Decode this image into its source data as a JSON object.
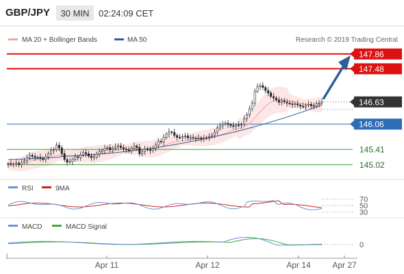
{
  "header": {
    "symbol": "GBP/JPY",
    "timeframe": "30 MIN",
    "time": "02:24:09 CET"
  },
  "legend_main": {
    "items": [
      {
        "label": "MA 20 + Bollinger Bands",
        "color": "#f4a3a3"
      },
      {
        "label": "MA 50",
        "color": "#2d5f9a"
      }
    ],
    "source": "Research © 2019 Trading Central"
  },
  "legend_rsi": {
    "items": [
      {
        "label": "RSI",
        "color": "#6b8fd6"
      },
      {
        "label": "9MA",
        "color": "#cc2222"
      }
    ]
  },
  "legend_macd": {
    "items": [
      {
        "label": "MACD",
        "color": "#6b8fd6"
      },
      {
        "label": "MACD Signal",
        "color": "#3aaa35"
      }
    ]
  },
  "colors": {
    "resistance": "#dd1111",
    "pivot": "#333333",
    "support_blue": "#2d6db5",
    "support_green": "#3a9a3a",
    "arrow": "#2d5f9a",
    "candle": "#222222",
    "band_fill": "#fde0e0",
    "band_line": "#f4a3a3"
  },
  "chart_data": [
    {
      "type": "candlestick",
      "title": "GBP/JPY",
      "x_ticks": [
        "Apr 11",
        "Apr 12",
        "Apr 14",
        "Apr 27"
      ],
      "ylim": [
        144.85,
        148.05
      ],
      "levels": [
        {
          "value": 147.86,
          "label": "147.86",
          "kind": "resistance",
          "box": true
        },
        {
          "value": 147.48,
          "label": "147.48",
          "kind": "resistance",
          "box": true
        },
        {
          "value": 146.63,
          "label": "146.63",
          "kind": "pivot",
          "box": true
        },
        {
          "value": 146.06,
          "label": "146.06",
          "kind": "support_blue",
          "box": true
        },
        {
          "value": 145.41,
          "label": "145.41",
          "kind": "support_green",
          "box": false
        },
        {
          "value": 145.02,
          "label": "145.02",
          "kind": "support_green",
          "box": false
        }
      ],
      "close": [
        145.05,
        145.03,
        145.04,
        145.06,
        145.02,
        145.08,
        145.12,
        145.2,
        145.26,
        145.23,
        145.2,
        145.21,
        145.19,
        145.15,
        145.22,
        145.3,
        145.38,
        145.4,
        145.52,
        145.45,
        145.3,
        145.15,
        145.08,
        145.1,
        145.16,
        145.22,
        145.2,
        145.27,
        145.33,
        145.3,
        145.24,
        145.2,
        145.22,
        145.29,
        145.35,
        145.38,
        145.44,
        145.46,
        145.4,
        145.44,
        145.48,
        145.5,
        145.46,
        145.42,
        145.4,
        145.38,
        145.44,
        145.5,
        145.46,
        145.3,
        145.36,
        145.42,
        145.4,
        145.38,
        145.44,
        145.52,
        145.62,
        145.6,
        145.72,
        145.8,
        145.86,
        145.85,
        145.77,
        145.72,
        145.71,
        145.74,
        145.76,
        145.71,
        145.72,
        145.7,
        145.69,
        145.71,
        145.68,
        145.7,
        145.72,
        145.74,
        145.78,
        145.85,
        145.96,
        146.02,
        146.06,
        146.08,
        146.05,
        146.02,
        146.0,
        146.04,
        146.03,
        146.05,
        146.2,
        146.3,
        146.45,
        146.6,
        146.9,
        147.02,
        147.05,
        147.0,
        146.92,
        146.86,
        146.77,
        146.73,
        146.68,
        146.62,
        146.66,
        146.63,
        146.6,
        146.58,
        146.56,
        146.58,
        146.55,
        146.52,
        146.5,
        146.55,
        146.57,
        146.53,
        146.52,
        146.58,
        146.6,
        146.63
      ],
      "ma20": [
        145.0,
        145.01,
        145.01,
        145.02,
        145.02,
        145.04,
        145.06,
        145.08,
        145.1,
        145.12,
        145.14,
        145.15,
        145.16,
        145.17,
        145.18,
        145.2,
        145.22,
        145.24,
        145.26,
        145.27,
        145.27,
        145.27,
        145.26,
        145.25,
        145.25,
        145.25,
        145.25,
        145.26,
        145.27,
        145.28,
        145.28,
        145.28,
        145.28,
        145.29,
        145.3,
        145.31,
        145.32,
        145.34,
        145.35,
        145.36,
        145.38,
        145.4,
        145.41,
        145.42,
        145.42,
        145.42,
        145.43,
        145.44,
        145.44,
        145.43,
        145.42,
        145.42,
        145.42,
        145.42,
        145.43,
        145.44,
        145.46,
        145.48,
        145.5,
        145.53,
        145.56,
        145.58,
        145.6,
        145.61,
        145.62,
        145.63,
        145.64,
        145.65,
        145.66,
        145.67,
        145.68,
        145.69,
        145.7,
        145.7,
        145.71,
        145.72,
        145.73,
        145.74,
        145.76,
        145.78,
        145.8,
        145.83,
        145.86,
        145.88,
        145.9,
        145.92,
        145.94,
        145.96,
        145.99,
        146.03,
        146.08,
        146.14,
        146.22,
        146.3,
        146.38,
        146.45,
        146.52,
        146.58,
        146.63,
        146.66,
        146.68,
        146.69,
        146.69,
        146.68,
        146.67,
        146.66,
        146.64,
        146.63,
        146.61,
        146.6,
        146.58,
        146.57,
        146.56,
        146.55,
        146.55,
        146.55,
        146.56,
        146.57
      ]
    },
    {
      "type": "line",
      "title": "RSI",
      "y_ticks": [
        70,
        50,
        30
      ],
      "ylim": [
        25,
        80
      ]
    },
    {
      "type": "line",
      "title": "MACD",
      "y_ticks": [
        0
      ],
      "ylim": [
        -0.35,
        0.45
      ]
    }
  ]
}
